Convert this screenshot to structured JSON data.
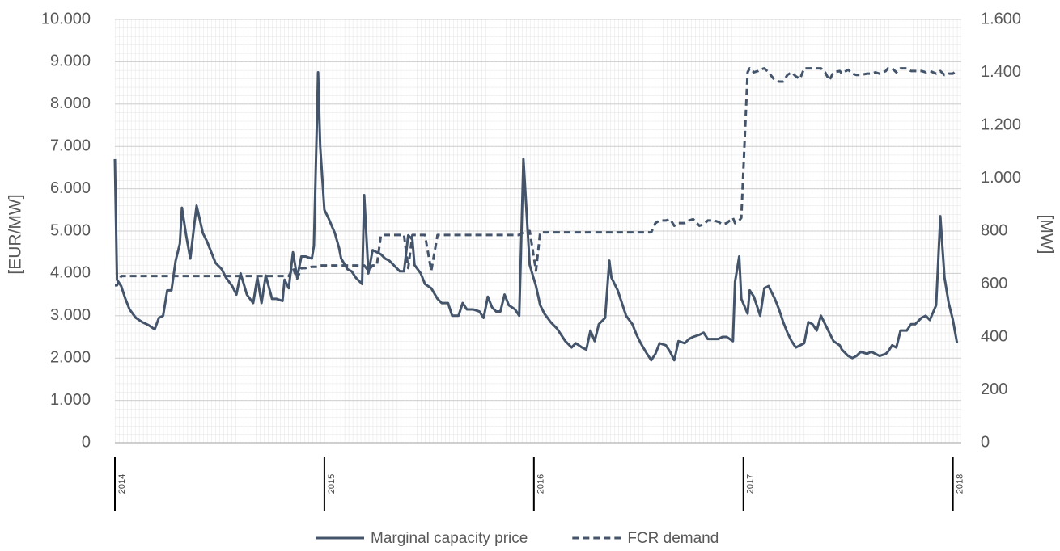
{
  "chart_data": {
    "type": "line",
    "y_label": "[EUR/MW]",
    "y2_label": "[MW]",
    "x": [
      2014,
      2014.01,
      2014.03,
      2014.05,
      2014.07,
      2014.1,
      2014.13,
      2014.16,
      2014.19,
      2014.21,
      2014.23,
      2014.25,
      2014.27,
      2014.29,
      2014.31,
      2014.32,
      2014.34,
      2014.36,
      2014.38,
      2014.39,
      2014.42,
      2014.44,
      2014.46,
      2014.48,
      2014.51,
      2014.53,
      2014.56,
      2014.58,
      2014.6,
      2014.63,
      2014.66,
      2014.68,
      2014.7,
      2014.72,
      2014.75,
      2014.77,
      2014.8,
      2014.81,
      2014.83,
      2014.85,
      2014.87,
      2014.89,
      2014.91,
      2014.94,
      2014.95,
      2014.97,
      2014.98,
      2015,
      2015.02,
      2015.05,
      2015.07,
      2015.08,
      2015.11,
      2015.13,
      2015.15,
      2015.18,
      2015.19,
      2015.21,
      2015.23,
      2015.25,
      2015.27,
      2015.29,
      2015.31,
      2015.34,
      2015.36,
      2015.38,
      2015.4,
      2015.42,
      2015.43,
      2015.46,
      2015.48,
      2015.51,
      2015.54,
      2015.56,
      2015.59,
      2015.61,
      2015.64,
      2015.66,
      2015.68,
      2015.71,
      2015.74,
      2015.76,
      2015.78,
      2015.8,
      2015.82,
      2015.84,
      2015.86,
      2015.88,
      2015.91,
      2015.93,
      2015.95,
      2015.98,
      2016.01,
      2016.03,
      2016.05,
      2016.08,
      2016.11,
      2016.13,
      2016.15,
      2016.18,
      2016.2,
      2016.23,
      2016.25,
      2016.27,
      2016.29,
      2016.31,
      2016.34,
      2016.36,
      2016.37,
      2016.4,
      2016.42,
      2016.44,
      2016.47,
      2016.49,
      2016.51,
      2016.54,
      2016.56,
      2016.58,
      2016.6,
      2016.63,
      2016.65,
      2016.67,
      2016.69,
      2016.72,
      2016.74,
      2016.76,
      2016.79,
      2016.81,
      2016.83,
      2016.86,
      2016.88,
      2016.9,
      2016.92,
      2016.95,
      2016.96,
      2016.98,
      2016.99,
      2017.02,
      2017.03,
      2017.05,
      2017.07,
      2017.08,
      2017.1,
      2017.12,
      2017.15,
      2017.17,
      2017.19,
      2017.21,
      2017.23,
      2017.25,
      2017.27,
      2017.29,
      2017.31,
      2017.33,
      2017.35,
      2017.37,
      2017.39,
      2017.41,
      2017.43,
      2017.46,
      2017.47,
      2017.5,
      2017.52,
      2017.54,
      2017.56,
      2017.59,
      2017.61,
      2017.63,
      2017.65,
      2017.68,
      2017.69,
      2017.71,
      2017.73,
      2017.75,
      2017.78,
      2017.8,
      2017.82,
      2017.85,
      2017.87,
      2017.89,
      2017.92,
      2017.94,
      2017.96,
      2017.98,
      2018,
      2018.02
    ],
    "series": [
      {
        "name": "Marginal capacity price",
        "color": "#44546a",
        "line_style": "solid",
        "values": [
          6700,
          3850,
          3700,
          3400,
          3150,
          2950,
          2850,
          2780,
          2680,
          2950,
          3000,
          3600,
          3600,
          4300,
          4700,
          5550,
          4900,
          4350,
          5200,
          5600,
          4950,
          4750,
          4500,
          4250,
          4100,
          3900,
          3700,
          3500,
          4000,
          3500,
          3300,
          3900,
          3300,
          3950,
          3400,
          3400,
          3350,
          3850,
          3650,
          4500,
          3900,
          4400,
          4400,
          4350,
          4650,
          8750,
          7000,
          5500,
          5300,
          4950,
          4600,
          4350,
          4100,
          4050,
          3900,
          3750,
          5850,
          4000,
          4550,
          4500,
          4450,
          4350,
          4300,
          4150,
          4050,
          4050,
          4900,
          4800,
          4200,
          4000,
          3750,
          3650,
          3400,
          3300,
          3300,
          3000,
          3000,
          3300,
          3150,
          3150,
          3100,
          2950,
          3450,
          3200,
          3100,
          3100,
          3500,
          3250,
          3150,
          3000,
          6700,
          4200,
          3700,
          3250,
          3050,
          2850,
          2700,
          2550,
          2400,
          2250,
          2350,
          2250,
          2200,
          2650,
          2400,
          2800,
          2950,
          4300,
          3900,
          3600,
          3300,
          3000,
          2800,
          2550,
          2350,
          2100,
          1950,
          2100,
          2350,
          2300,
          2150,
          1950,
          2400,
          2350,
          2450,
          2500,
          2550,
          2600,
          2450,
          2450,
          2450,
          2500,
          2500,
          2400,
          3800,
          4400,
          3400,
          3050,
          3600,
          3450,
          3150,
          3000,
          3650,
          3700,
          3400,
          3150,
          2850,
          2600,
          2400,
          2250,
          2300,
          2350,
          2850,
          2800,
          2650,
          3000,
          2800,
          2600,
          2400,
          2300,
          2200,
          2050,
          2000,
          2050,
          2150,
          2100,
          2150,
          2100,
          2050,
          2100,
          2150,
          2300,
          2250,
          2650,
          2650,
          2800,
          2800,
          2950,
          3000,
          2900,
          3250,
          5350,
          3900,
          3300,
          2900,
          2350
        ]
      },
      {
        "name": "FCR demand",
        "color": "#44546a",
        "line_style": "dashed",
        "axis": "y2",
        "values": [
          595,
          595,
          630,
          630,
          630,
          630,
          630,
          630,
          630,
          630,
          630,
          630,
          630,
          630,
          630,
          630,
          630,
          630,
          630,
          630,
          630,
          630,
          630,
          630,
          630,
          630,
          630,
          630,
          630,
          630,
          630,
          630,
          630,
          630,
          630,
          630,
          630,
          630,
          630,
          660,
          620,
          660,
          660,
          665,
          665,
          665,
          670,
          670,
          670,
          670,
          670,
          670,
          670,
          670,
          670,
          670,
          670,
          650,
          670,
          670,
          785,
          785,
          785,
          785,
          785,
          785,
          660,
          785,
          785,
          785,
          785,
          650,
          785,
          785,
          785,
          785,
          785,
          785,
          785,
          785,
          785,
          785,
          785,
          785,
          785,
          785,
          785,
          785,
          785,
          785,
          795,
          800,
          650,
          795,
          795,
          795,
          795,
          795,
          795,
          795,
          795,
          795,
          795,
          795,
          795,
          795,
          795,
          795,
          795,
          795,
          795,
          795,
          795,
          795,
          795,
          795,
          795,
          830,
          840,
          840,
          845,
          820,
          830,
          830,
          840,
          845,
          820,
          825,
          840,
          840,
          835,
          825,
          830,
          850,
          830,
          840,
          850,
          1400,
          1415,
          1400,
          1405,
          1410,
          1415,
          1400,
          1370,
          1365,
          1365,
          1390,
          1400,
          1385,
          1375,
          1415,
          1415,
          1415,
          1415,
          1415,
          1400,
          1370,
          1400,
          1405,
          1395,
          1410,
          1395,
          1390,
          1390,
          1395,
          1395,
          1400,
          1395,
          1405,
          1415,
          1415,
          1400,
          1415,
          1415,
          1405,
          1405,
          1405,
          1400,
          1405,
          1395,
          1405,
          1390,
          1395,
          1395,
          1410
        ]
      }
    ],
    "xlim": [
      2014,
      2018.04
    ],
    "xticks": [
      2014,
      2015,
      2016,
      2017,
      2018
    ],
    "ylim": [
      0,
      10000
    ],
    "yticks": [
      0,
      {
        "value": 1000,
        "label": "1.000"
      },
      {
        "value": 2000,
        "label": "2.000"
      },
      {
        "value": 3000,
        "label": "3.000"
      },
      {
        "value": 4000,
        "label": "4.000"
      },
      {
        "value": 5000,
        "label": "5.000"
      },
      {
        "value": 6000,
        "label": "6.000"
      },
      {
        "value": 7000,
        "label": "7.000"
      },
      {
        "value": 8000,
        "label": "8.000"
      },
      {
        "value": 9000,
        "label": "9.000"
      },
      {
        "value": 10000,
        "label": "10.000"
      }
    ],
    "y2lim": [
      0,
      1600
    ],
    "y2ticks": [
      0,
      200,
      400,
      600,
      800,
      {
        "value": 1000,
        "label": "1.000"
      },
      {
        "value": 1200,
        "label": "1.200"
      },
      {
        "value": 1400,
        "label": "1.400"
      },
      {
        "value": 1600,
        "label": "1.600"
      }
    ],
    "grid": true
  }
}
